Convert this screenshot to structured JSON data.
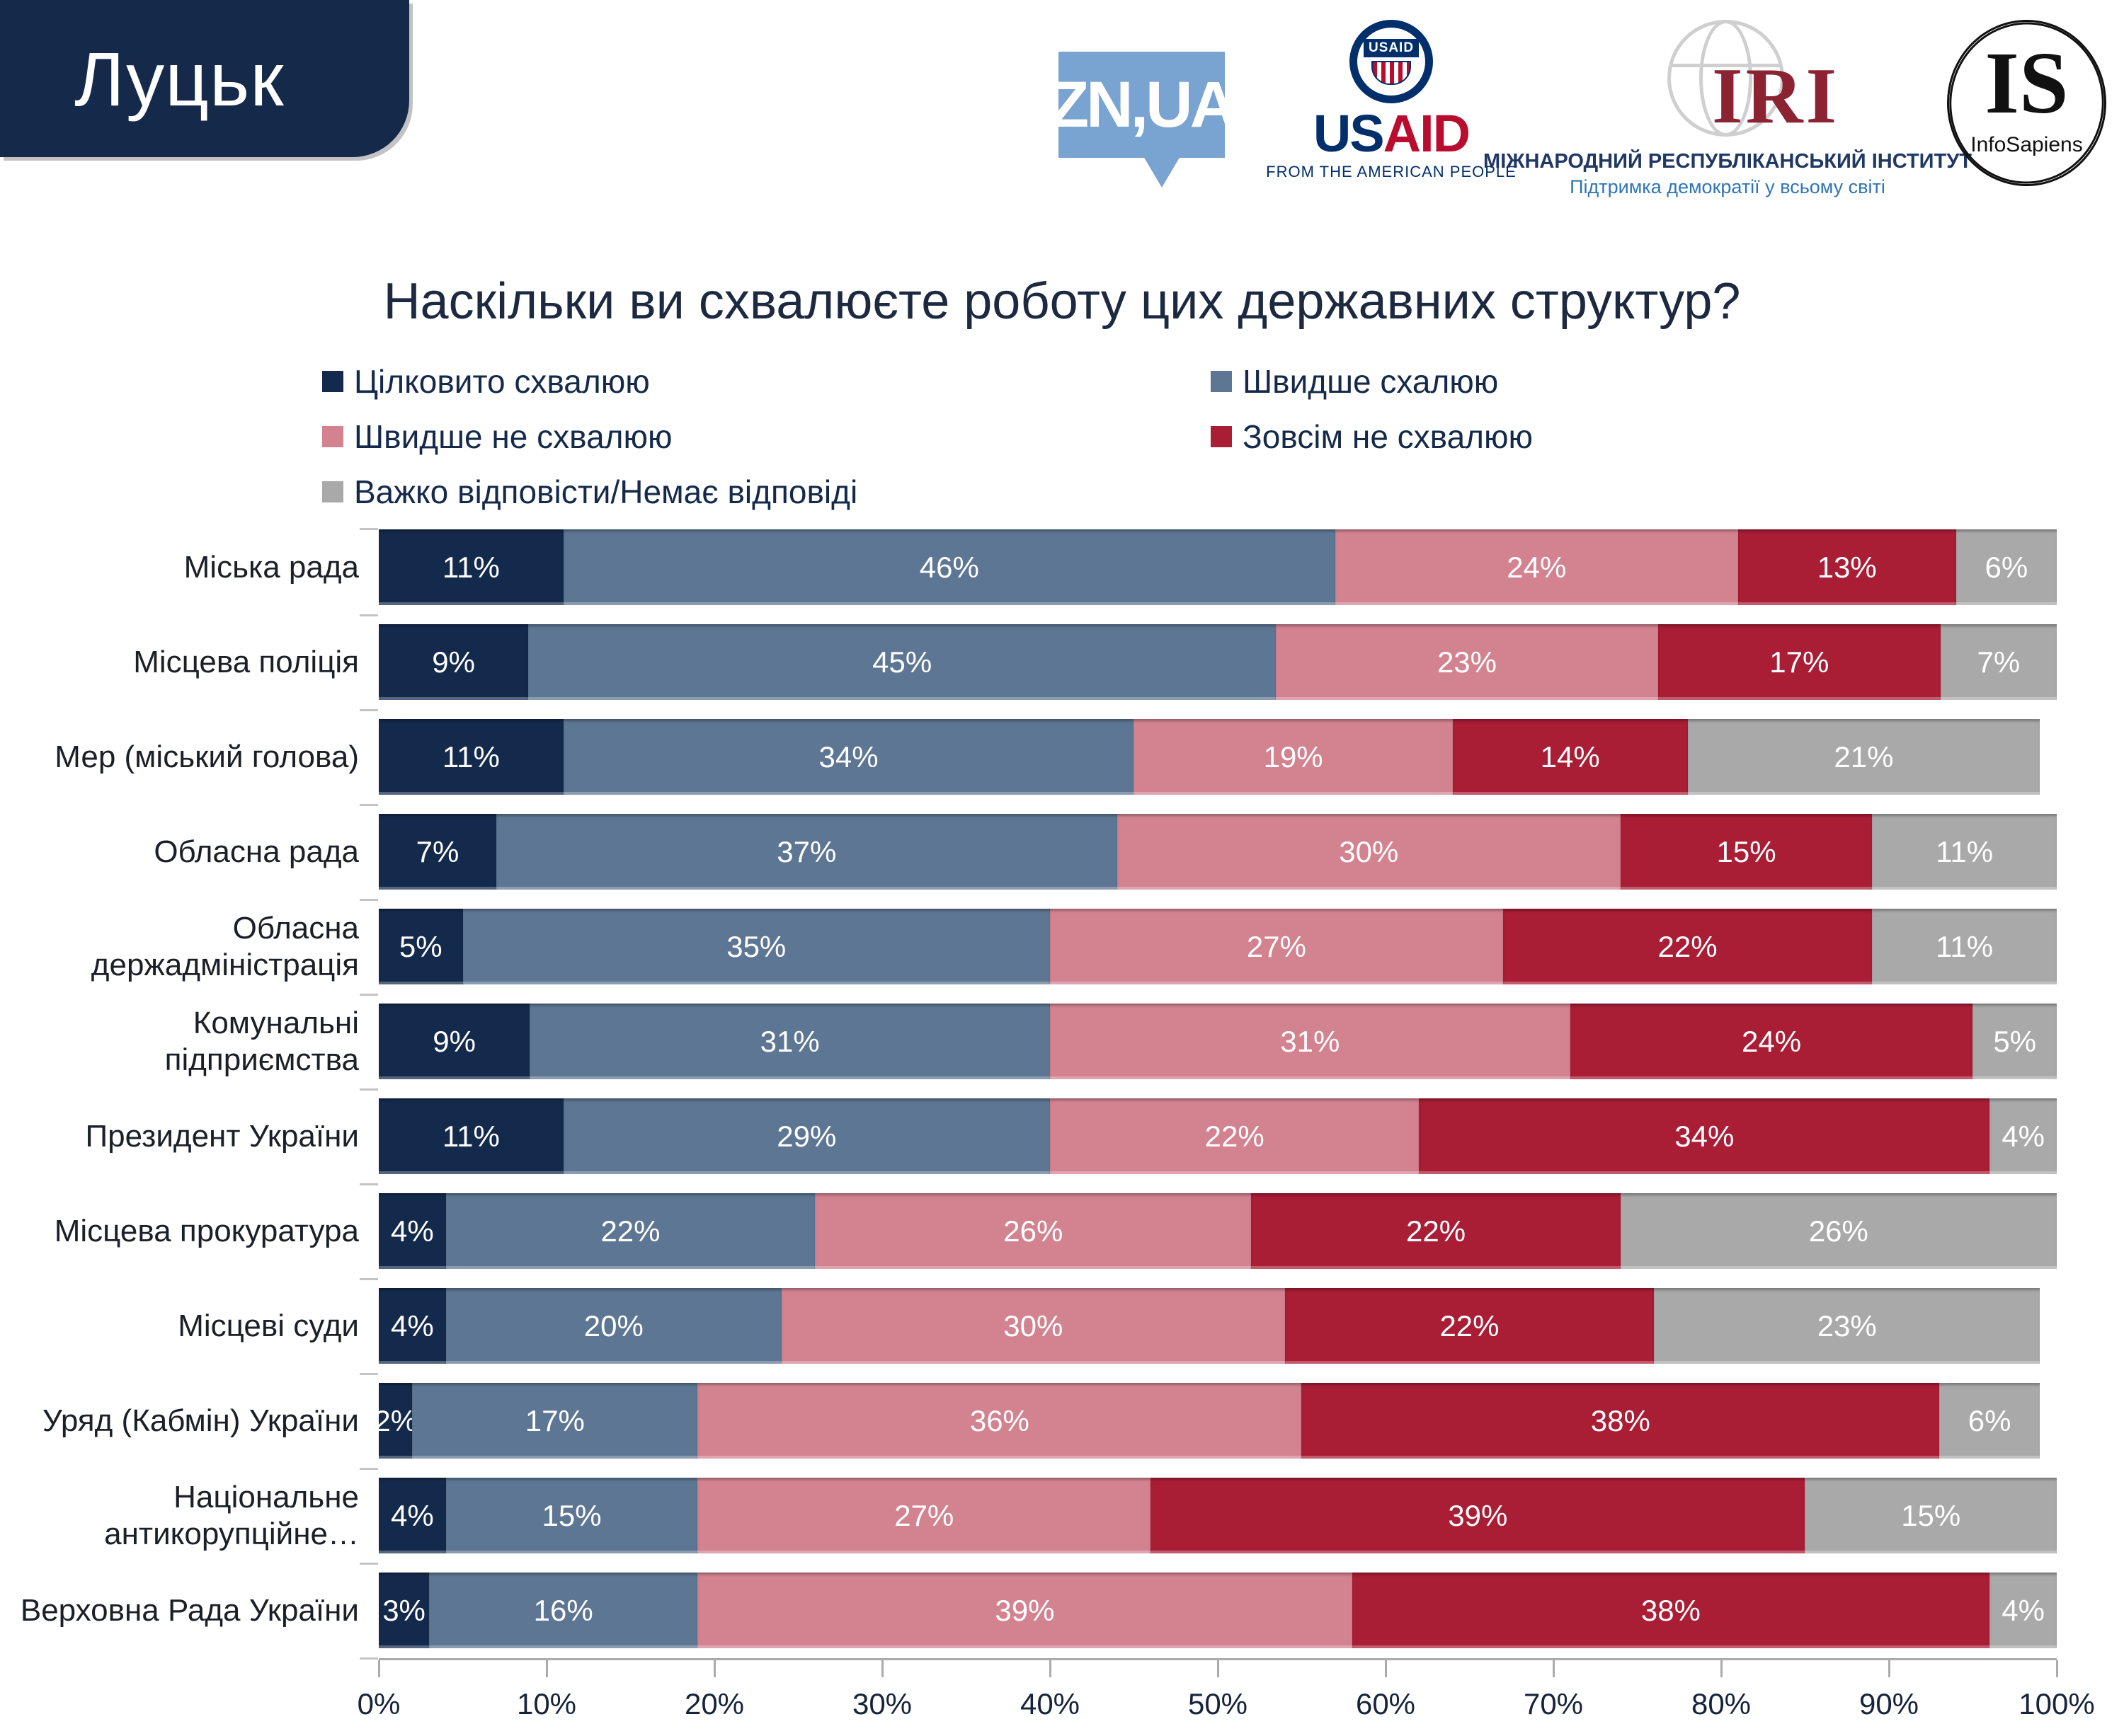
{
  "page": {
    "region": "Луцьк"
  },
  "logos": {
    "zn": "ZN,UA",
    "usaid": {
      "seal_tag": "USAID",
      "word_us": "US",
      "word_aid": "AID",
      "subtitle": "FROM THE AMERICAN PEOPLE"
    },
    "iri": {
      "abbr": "IRI",
      "title": "МІЖНАРОДНИЙ РЕСПУБЛІКАНСЬКИЙ ІНСТИТУТ",
      "subtitle": "Підтримка демократії у всьому світі"
    },
    "infosapiens": {
      "abbr": "IS",
      "title": "InfoSapiens"
    }
  },
  "title": "Наскільки ви схвалюєте роботу цих державних структур?",
  "chart_data": {
    "type": "bar",
    "orientation": "horizontal-stacked",
    "unit": "%",
    "title": "Наскільки ви схвалюєте роботу цих державних структур?",
    "legend_position": "top",
    "value_labels": "inside-white",
    "xlim": [
      0,
      100
    ],
    "x_ticks": [
      "0%",
      "10%",
      "20%",
      "30%",
      "40%",
      "50%",
      "60%",
      "70%",
      "80%",
      "90%",
      "100%"
    ],
    "categories": [
      "Міська рада",
      "Місцева поліція",
      "Мер (міський голова)",
      "Обласна рада",
      "Обласна держадміністрація",
      "Комунальні підприємства",
      "Президент України",
      "Місцева прокуратура",
      "Місцеві суди",
      "Уряд (Кабмін) України",
      "Національне антикорупційне…",
      "Верховна Рада України"
    ],
    "series": [
      {
        "name": "Цілковито схвалюю",
        "color": "#142A4C",
        "values": [
          11,
          9,
          11,
          7,
          5,
          9,
          11,
          4,
          4,
          2,
          4,
          3
        ]
      },
      {
        "name": "Швидше схалюю",
        "color": "#5D7693",
        "values": [
          46,
          45,
          34,
          37,
          35,
          31,
          29,
          22,
          20,
          17,
          15,
          16
        ]
      },
      {
        "name": "Швидше не схвалюю",
        "color": "#D3838F",
        "values": [
          24,
          23,
          19,
          30,
          27,
          31,
          22,
          26,
          30,
          36,
          27,
          39
        ]
      },
      {
        "name": "Зовсім не схвалюю",
        "color": "#A91D35",
        "values": [
          13,
          17,
          14,
          15,
          22,
          24,
          34,
          22,
          22,
          38,
          39,
          38
        ]
      },
      {
        "name": "Важко відповісти/Немає відповіді",
        "color": "#A9A9A9",
        "values": [
          6,
          7,
          21,
          11,
          11,
          5,
          4,
          26,
          23,
          6,
          15,
          4
        ]
      }
    ]
  }
}
